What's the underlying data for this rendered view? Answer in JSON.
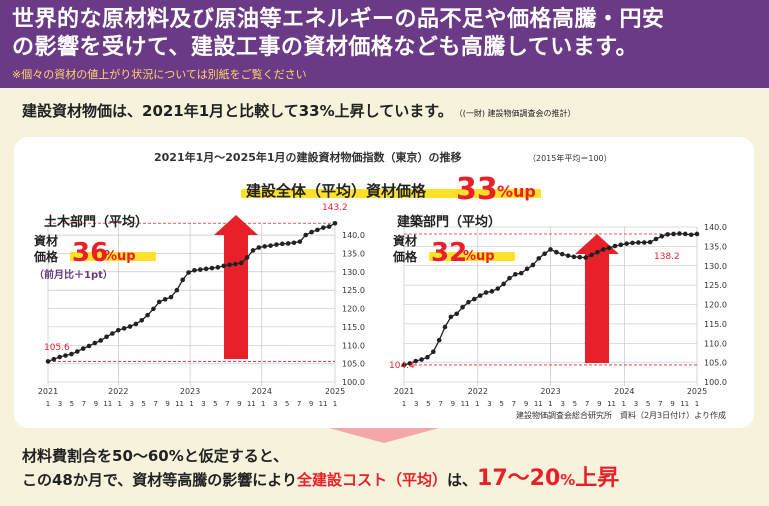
{
  "header": {
    "line1": "世界的な原材料及び原油等エネルギーの品不足や価格高騰・円安",
    "line2": "の影響を受けて、建設工事の資材価格なども高騰しています。",
    "note": "※個々の資材の値上がり状況については別紙をご覧ください"
  },
  "lead": {
    "text": "建設資材物価は、2021年1月と比較して33%上昇しています。",
    "source": "（(一財) 建設物価調査会の推計）"
  },
  "card": {
    "title": "2021年1月～2025年1月の建設資材物価指数（東京）の推移",
    "title_note": "（2015年平均＝100）",
    "overall_label": "建設全体（平均）資材価格",
    "overall_value": "33",
    "overall_unit": "%up",
    "source_note": "建設物価調査会総合研究所　資料（2月3日付け）より作成"
  },
  "colors": {
    "header": "#6a3a86",
    "red": "#e8202a",
    "line": "#222222",
    "highlight": "#ffe12a",
    "bg": "#f6f2dc"
  },
  "chart_data": [
    {
      "type": "line",
      "title": "土木部門（平均）",
      "badge_label": [
        "資材",
        "価格"
      ],
      "badge_value": "36",
      "badge_unit": "%up",
      "sub_note": "（前月比＋1pt）",
      "ylim": [
        100,
        143
      ],
      "yticks": [
        "100.0",
        "105.0",
        "110.0",
        "115.0",
        "120.0",
        "125.0",
        "130.0",
        "135.0",
        "140.0"
      ],
      "year_labels": [
        "2021",
        "2022",
        "2023",
        "2024",
        "2025"
      ],
      "month_labels": [
        "1",
        "3",
        "5",
        "7",
        "9",
        "11"
      ],
      "start_label": "105.6",
      "end_label": "143.2",
      "series": [
        {
          "values": [
            105.6,
            106.2,
            106.8,
            107.2,
            107.6,
            108.3,
            109.1,
            109.8,
            110.6,
            111.3,
            112.3,
            113.2,
            114.1,
            114.6,
            115.1,
            115.8,
            116.8,
            118.2,
            119.9,
            121.8,
            122.5,
            123.1,
            125.0,
            127.8,
            129.8,
            130.4,
            130.6,
            130.8,
            131.0,
            131.2,
            131.6,
            131.9,
            132.1,
            132.4,
            133.9,
            135.8,
            136.6,
            136.9,
            137.1,
            137.4,
            137.6,
            137.7,
            137.9,
            138.2,
            140.0,
            140.8,
            141.4,
            142.0,
            142.3,
            143.2
          ]
        }
      ]
    },
    {
      "type": "line",
      "title": "建築部門（平均）",
      "badge_label": [
        "資材",
        "価格"
      ],
      "badge_value": "32",
      "badge_unit": "%up",
      "ylim": [
        100,
        140
      ],
      "yticks": [
        "100.0",
        "105.0",
        "110.0",
        "115.0",
        "120.0",
        "125.0",
        "130.0",
        "135.0",
        "140.0"
      ],
      "year_labels": [
        "2021",
        "2022",
        "2023",
        "2024",
        "2025"
      ],
      "month_labels": [
        "1",
        "3",
        "5",
        "7",
        "9",
        "11"
      ],
      "start_label": "104.4",
      "end_label": "138.2",
      "series": [
        {
          "values": [
            104.4,
            104.8,
            105.4,
            105.8,
            106.4,
            107.8,
            110.8,
            114.2,
            116.8,
            117.6,
            119.3,
            120.6,
            121.4,
            122.3,
            123.1,
            123.4,
            124.1,
            125.3,
            126.8,
            127.8,
            128.1,
            129.2,
            130.2,
            131.9,
            133.1,
            134.2,
            133.5,
            133.0,
            132.6,
            132.3,
            132.2,
            132.1,
            132.8,
            133.5,
            134.2,
            134.6,
            135.1,
            135.4,
            135.7,
            135.9,
            136.0,
            136.0,
            136.1,
            136.9,
            137.6,
            138.1,
            138.2,
            138.3,
            138.2,
            138.0,
            138.2
          ]
        }
      ]
    }
  ],
  "bottom": {
    "line1": "材料費割合を50～60%と仮定すると、",
    "line2_a": "この48か月で、資材等高騰の影響により",
    "line2_b": "全建設コスト（平均）",
    "line2_c": "は、",
    "line2_d": "17～20",
    "line2_e": "%",
    "line2_f": "上昇"
  }
}
